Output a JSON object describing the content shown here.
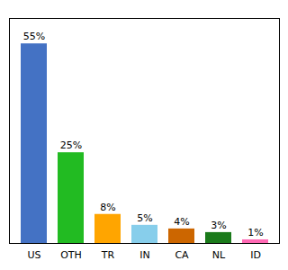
{
  "chart_data": {
    "type": "bar",
    "categories": [
      "US",
      "OTH",
      "TR",
      "IN",
      "CA",
      "NL",
      "ID"
    ],
    "values": [
      55,
      25,
      8,
      5,
      4,
      3,
      1
    ],
    "value_labels": [
      "55%",
      "25%",
      "8%",
      "5%",
      "4%",
      "3%",
      "1%"
    ],
    "colors": [
      "#4472C4",
      "#22BB22",
      "#FFA500",
      "#87CEEB",
      "#CC6600",
      "#1A7A1A",
      "#FF69B4"
    ],
    "ylim": [
      0,
      62
    ],
    "data_labels": true,
    "tick_labels": "x",
    "grid": false
  }
}
